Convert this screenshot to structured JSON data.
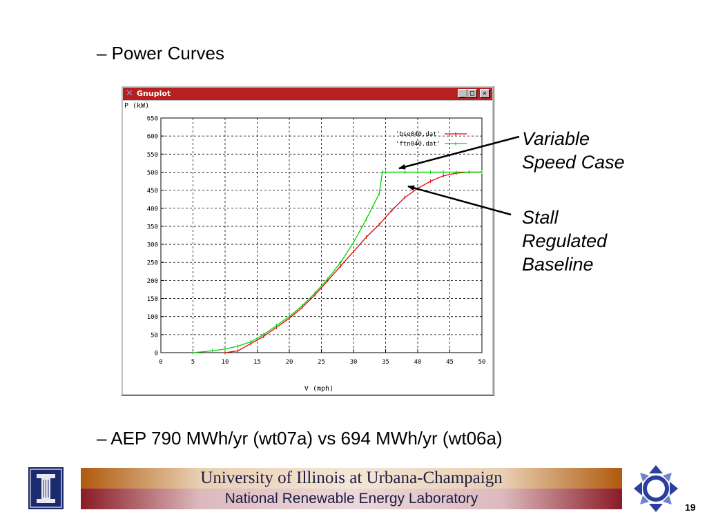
{
  "slide": {
    "bullet_top": "– Power Curves",
    "bullet_bottom": "– AEP 790 MWh/yr (wt07a) vs 694 MWh/yr (wt06a)",
    "page_number": "19"
  },
  "annotations": {
    "variable_line1": "Variable",
    "variable_line2": "Speed Case",
    "stall_line1": "Stall",
    "stall_line2": "Regulated",
    "stall_line3": "Baseline"
  },
  "window": {
    "title": "Gnuplot",
    "title_icon": "x-icon",
    "buttons": [
      "minimize-icon",
      "maximize-icon",
      "close-icon"
    ]
  },
  "footer": {
    "university": "University of Illinois at Urbana-Champaign",
    "lab": "National Renewable Energy Laboratory"
  },
  "colors": {
    "title_bar": "#b81f1f",
    "series_bse": "#e00000",
    "series_ftn": "#00d000"
  },
  "chart_data": {
    "type": "line",
    "ylabel": "P (kW)",
    "xlabel": "V (mph)",
    "xlim": [
      0,
      50
    ],
    "ylim": [
      0,
      650
    ],
    "xticks": [
      0,
      5,
      10,
      15,
      20,
      25,
      30,
      35,
      40,
      45,
      50
    ],
    "yticks": [
      0,
      50,
      100,
      150,
      200,
      250,
      300,
      350,
      400,
      450,
      500,
      550,
      600,
      650
    ],
    "grid": true,
    "legend_position": "top-right",
    "series": [
      {
        "name": "'bse040.dat'",
        "color": "#e00000",
        "x": [
          10,
          12,
          14,
          16,
          18,
          20,
          22,
          24,
          26,
          28,
          30,
          32,
          34,
          36,
          38,
          40,
          42,
          44,
          46,
          48,
          50
        ],
        "y": [
          0,
          5,
          25,
          45,
          70,
          95,
          125,
          160,
          200,
          240,
          280,
          320,
          355,
          395,
          430,
          455,
          475,
          490,
          497,
          500,
          500
        ]
      },
      {
        "name": "'ftn040.dat'",
        "color": "#00d000",
        "x": [
          5,
          8,
          10,
          12,
          14,
          16,
          18,
          20,
          22,
          24,
          26,
          28,
          30,
          32,
          34,
          34.5,
          35,
          38,
          40,
          42,
          44,
          46,
          48,
          50
        ],
        "y": [
          0,
          5,
          10,
          18,
          30,
          50,
          75,
          100,
          130,
          165,
          205,
          250,
          305,
          370,
          440,
          500,
          500,
          500,
          500,
          500,
          500,
          500,
          500,
          500
        ]
      }
    ]
  }
}
